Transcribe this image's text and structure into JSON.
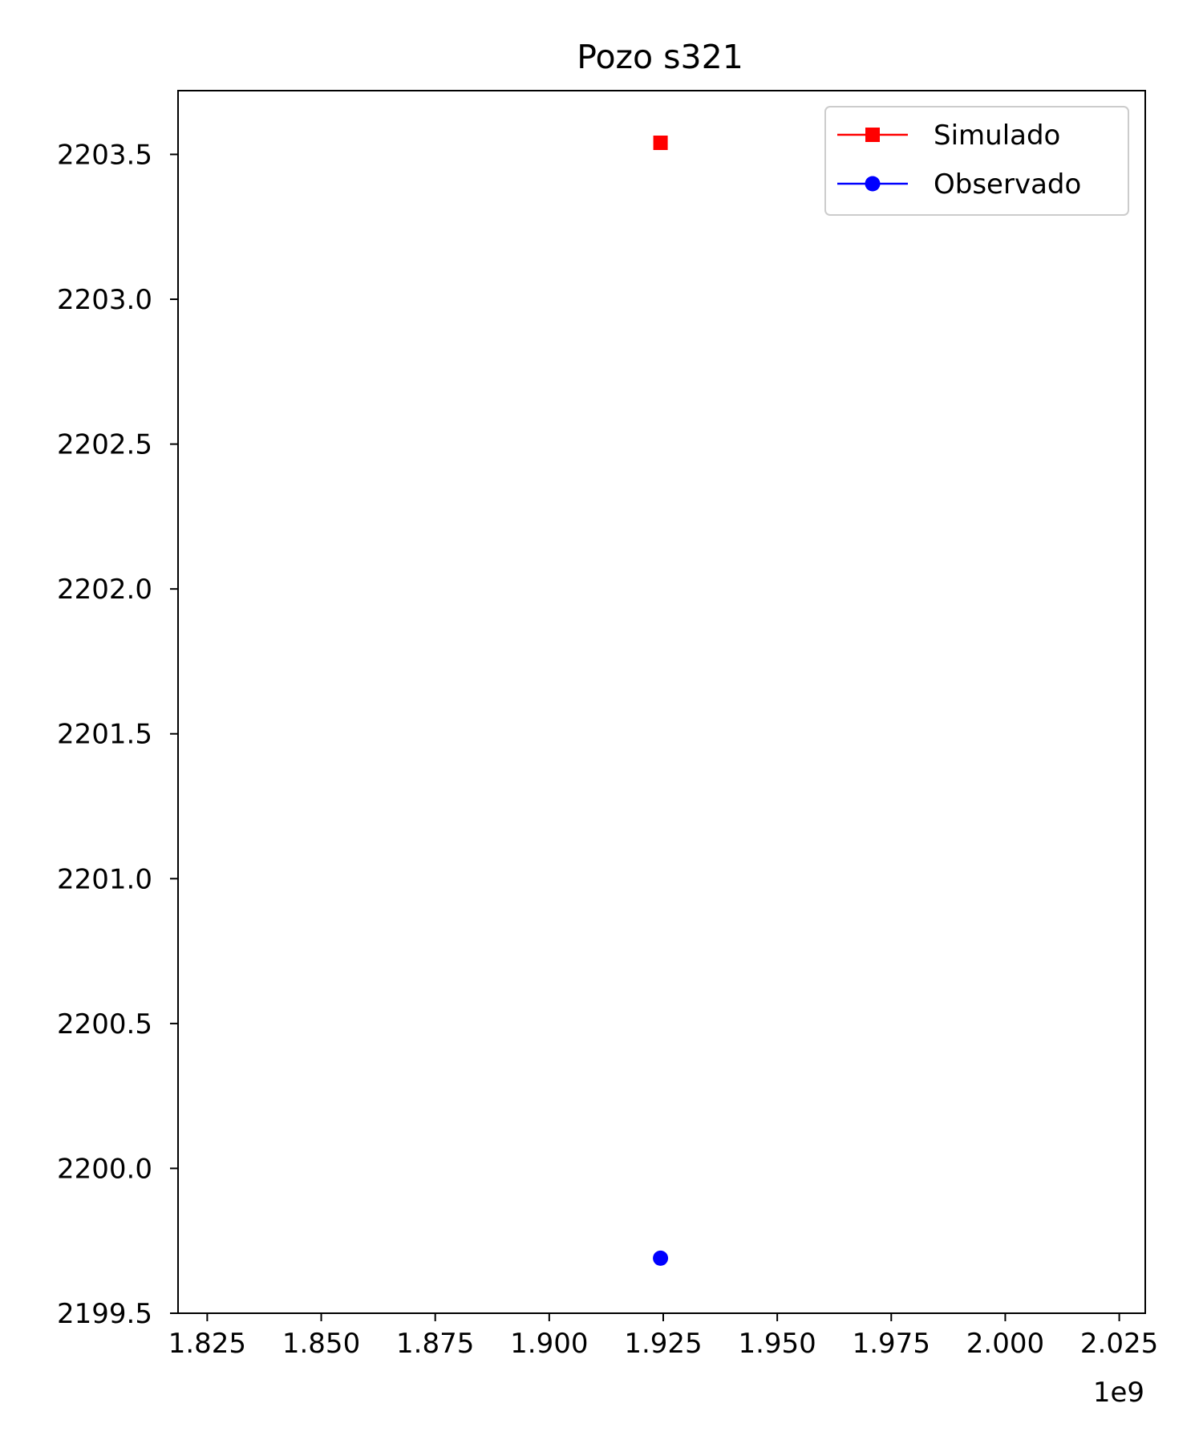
{
  "chart_data": {
    "type": "scatter",
    "title": "Pozo s321",
    "xlabel": "",
    "ylabel": "",
    "x_offset_label": "1e9",
    "xlim": [
      1.8186,
      2.0307
    ],
    "ylim": [
      2199.5,
      2203.72
    ],
    "grid": false,
    "legend_position": "upper right",
    "x_ticks": [
      1.825,
      1.85,
      1.875,
      1.9,
      1.925,
      1.95,
      1.975,
      2.0,
      2.025
    ],
    "x_tick_labels": [
      "1.825",
      "1.850",
      "1.875",
      "1.900",
      "1.925",
      "1.950",
      "1.975",
      "2.000",
      "2.025"
    ],
    "y_ticks": [
      2199.5,
      2200.0,
      2200.5,
      2201.0,
      2201.5,
      2202.0,
      2202.5,
      2203.0,
      2203.5
    ],
    "y_tick_labels": [
      "2199.5",
      "2200.0",
      "2200.5",
      "2201.0",
      "2201.5",
      "2202.0",
      "2202.5",
      "2203.0",
      "2203.5"
    ],
    "series": [
      {
        "name": "Simulado",
        "color": "#ff0000",
        "marker": "square",
        "points": [
          {
            "x": 1.9244,
            "y": 2203.54
          }
        ]
      },
      {
        "name": "Observado",
        "color": "#0000ff",
        "marker": "circle",
        "points": [
          {
            "x": 1.9244,
            "y": 2199.69
          }
        ]
      }
    ]
  }
}
